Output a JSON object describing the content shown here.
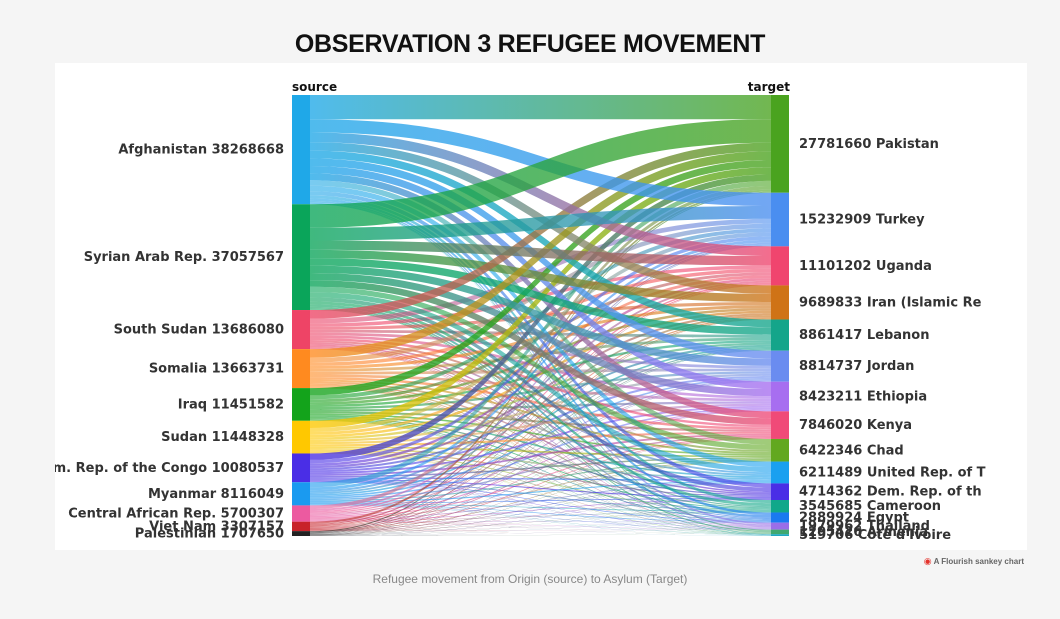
{
  "title": "OBSERVATION 3 REFUGEE MOVEMENT",
  "caption": "Refugee movement from Origin (source) to Asylum (Target)",
  "credit": "A Flourish sankey chart",
  "chart_data": {
    "type": "sankey",
    "column_labels": {
      "source": "source",
      "target": "target"
    },
    "sources": [
      {
        "name": "Afghanistan",
        "value": 38268668,
        "color": "#1fa8e8"
      },
      {
        "name": "Syrian Arab Rep.",
        "value": 37057567,
        "color": "#0aa55a"
      },
      {
        "name": "South Sudan",
        "value": 13686080,
        "color": "#ee4466"
      },
      {
        "name": "Somalia",
        "value": 13663731,
        "color": "#ff8a1f"
      },
      {
        "name": "Iraq",
        "value": 11451582,
        "color": "#13a31b"
      },
      {
        "name": "Sudan",
        "value": 11448328,
        "color": "#ffc800"
      },
      {
        "name": "Dem. Rep. of the Congo",
        "value": 10080537,
        "color": "#4a2ee6"
      },
      {
        "name": "Myanmar",
        "value": 8116049,
        "color": "#1a9af0"
      },
      {
        "name": "Central African Rep.",
        "value": 5700307,
        "color": "#ec5aa0"
      },
      {
        "name": "Viet Nam",
        "value": 3307157,
        "color": "#c8222a"
      },
      {
        "name": "Palestinian",
        "value": 1707650,
        "color": "#222222"
      }
    ],
    "targets": [
      {
        "name": "Pakistan",
        "value": 27781660,
        "color": "#4aa31f"
      },
      {
        "name": "Turkey",
        "value": 15232909,
        "color": "#4a8ef0"
      },
      {
        "name": "Uganda",
        "value": 11101202,
        "color": "#f0456e"
      },
      {
        "name": "Iran (Islamic Re",
        "value": 9689833,
        "color": "#cf7316"
      },
      {
        "name": "Lebanon",
        "value": 8861417,
        "color": "#14a58a"
      },
      {
        "name": "Jordan",
        "value": 8814737,
        "color": "#6a8cf0"
      },
      {
        "name": "Ethiopia",
        "value": 8423211,
        "color": "#a76ef0"
      },
      {
        "name": "Kenya",
        "value": 7846020,
        "color": "#f04a78"
      },
      {
        "name": "Chad",
        "value": 6422346,
        "color": "#62a81f"
      },
      {
        "name": "United Rep. of T",
        "value": 6211489,
        "color": "#1aa0f0"
      },
      {
        "name": "Dem. Rep. of th",
        "value": 4714362,
        "color": "#4a2ee6"
      },
      {
        "name": "Cameroon",
        "value": 3545685,
        "color": "#10a88a"
      },
      {
        "name": "Egypt",
        "value": 2889924,
        "color": "#1a7af0"
      },
      {
        "name": "Thailand",
        "value": 1979962,
        "color": "#9a6ee8"
      },
      {
        "name": "Armenia",
        "value": 1295426,
        "color": "#40a870"
      },
      {
        "name": "Cote d'Ivoire",
        "value": 519706,
        "color": "#20a8c0"
      }
    ]
  }
}
